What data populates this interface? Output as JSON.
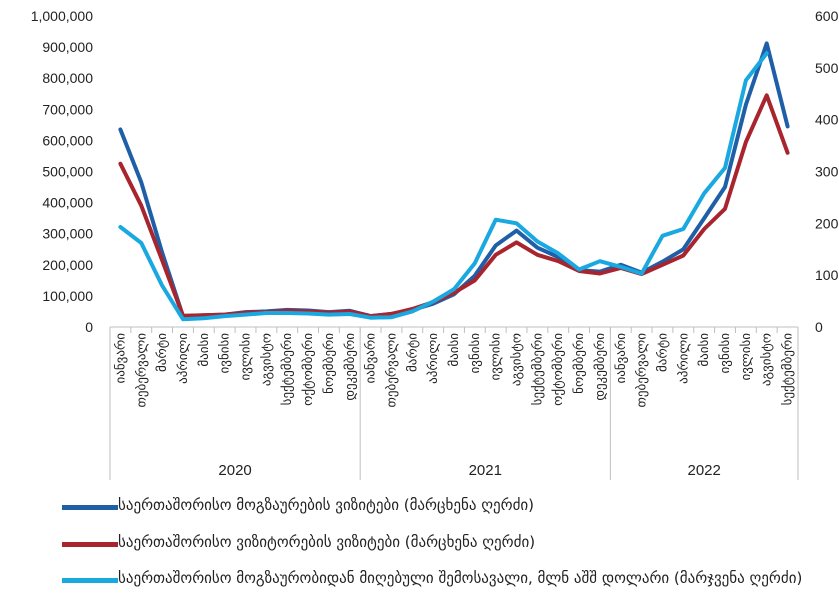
{
  "chart_data": {
    "type": "line",
    "years": [
      {
        "label": "2020",
        "count": 12
      },
      {
        "label": "2021",
        "count": 12
      },
      {
        "label": "2022",
        "count": 9
      }
    ],
    "categories": [
      "იანვარი",
      "თებერვალი",
      "მარტი",
      "აპრილი",
      "მაისი",
      "ივნისი",
      "ივლისი",
      "აგვისტო",
      "სექტემბერი",
      "ოქტომბერი",
      "ნოემბერი",
      "დეკემბერი",
      "იანვარი",
      "თებერვალი",
      "მარტი",
      "აპრილი",
      "მაისი",
      "ივნისი",
      "ივლისი",
      "აგვისტო",
      "სექტემბერი",
      "ოქტომბერი",
      "ნოემბერი",
      "დეკემბერი",
      "იანვარი",
      "თებერვალი",
      "მარტი",
      "აპრილი",
      "მაისი",
      "ივნისი",
      "ივლისი",
      "აგვისტო",
      "სექტემბერი"
    ],
    "y_left": {
      "range": [
        0,
        1000000
      ],
      "ticks": [
        "0",
        "100,000",
        "200,000",
        "300,000",
        "400,000",
        "500,000",
        "600,000",
        "700,000",
        "800,000",
        "900,000",
        "1,000,000"
      ]
    },
    "y_right": {
      "range": [
        0,
        600
      ],
      "ticks": [
        "0",
        "100",
        "200",
        "300",
        "400",
        "500",
        "600"
      ]
    },
    "grid": false,
    "legend_position": "bottom",
    "series": [
      {
        "name": "საერთაშორისო მოგზაურების ვიზიტები (მარცხენა ღერძი)",
        "axis": "left",
        "color": "#1f5fa8",
        "values": [
          635000,
          465000,
          240000,
          35000,
          38000,
          40000,
          48000,
          50000,
          55000,
          53000,
          48000,
          52000,
          35000,
          42000,
          55000,
          75000,
          105000,
          165000,
          262000,
          310000,
          255000,
          225000,
          183000,
          178000,
          200000,
          175000,
          210000,
          250000,
          350000,
          450000,
          715000,
          912000,
          645000
        ]
      },
      {
        "name": "საერთაშორისო ვიზიტორების ვიზიტები (მარცხენა ღერძი)",
        "axis": "left",
        "color": "#a8252e",
        "values": [
          525000,
          390000,
          215000,
          36000,
          38000,
          40000,
          46000,
          48000,
          52000,
          50000,
          46000,
          50000,
          35000,
          42000,
          58000,
          80000,
          110000,
          150000,
          232000,
          272000,
          232000,
          212000,
          180000,
          172000,
          190000,
          170000,
          200000,
          230000,
          315000,
          380000,
          595000,
          745000,
          560000
        ]
      },
      {
        "name": "საერთაშორისო მოგზაურობიდან მიღებული შემოსავალი, მლნ აშშ დოლარი (მარჯვენა ღერძი)",
        "axis": "right",
        "color": "#1aa8e0",
        "values": [
          193,
          162,
          80,
          15,
          17,
          21,
          24,
          27,
          27,
          26,
          24,
          25,
          18,
          19,
          30,
          49,
          73,
          123,
          207,
          200,
          165,
          142,
          111,
          127,
          116,
          103,
          176,
          189,
          258,
          307,
          476,
          528,
          null
        ]
      }
    ]
  }
}
